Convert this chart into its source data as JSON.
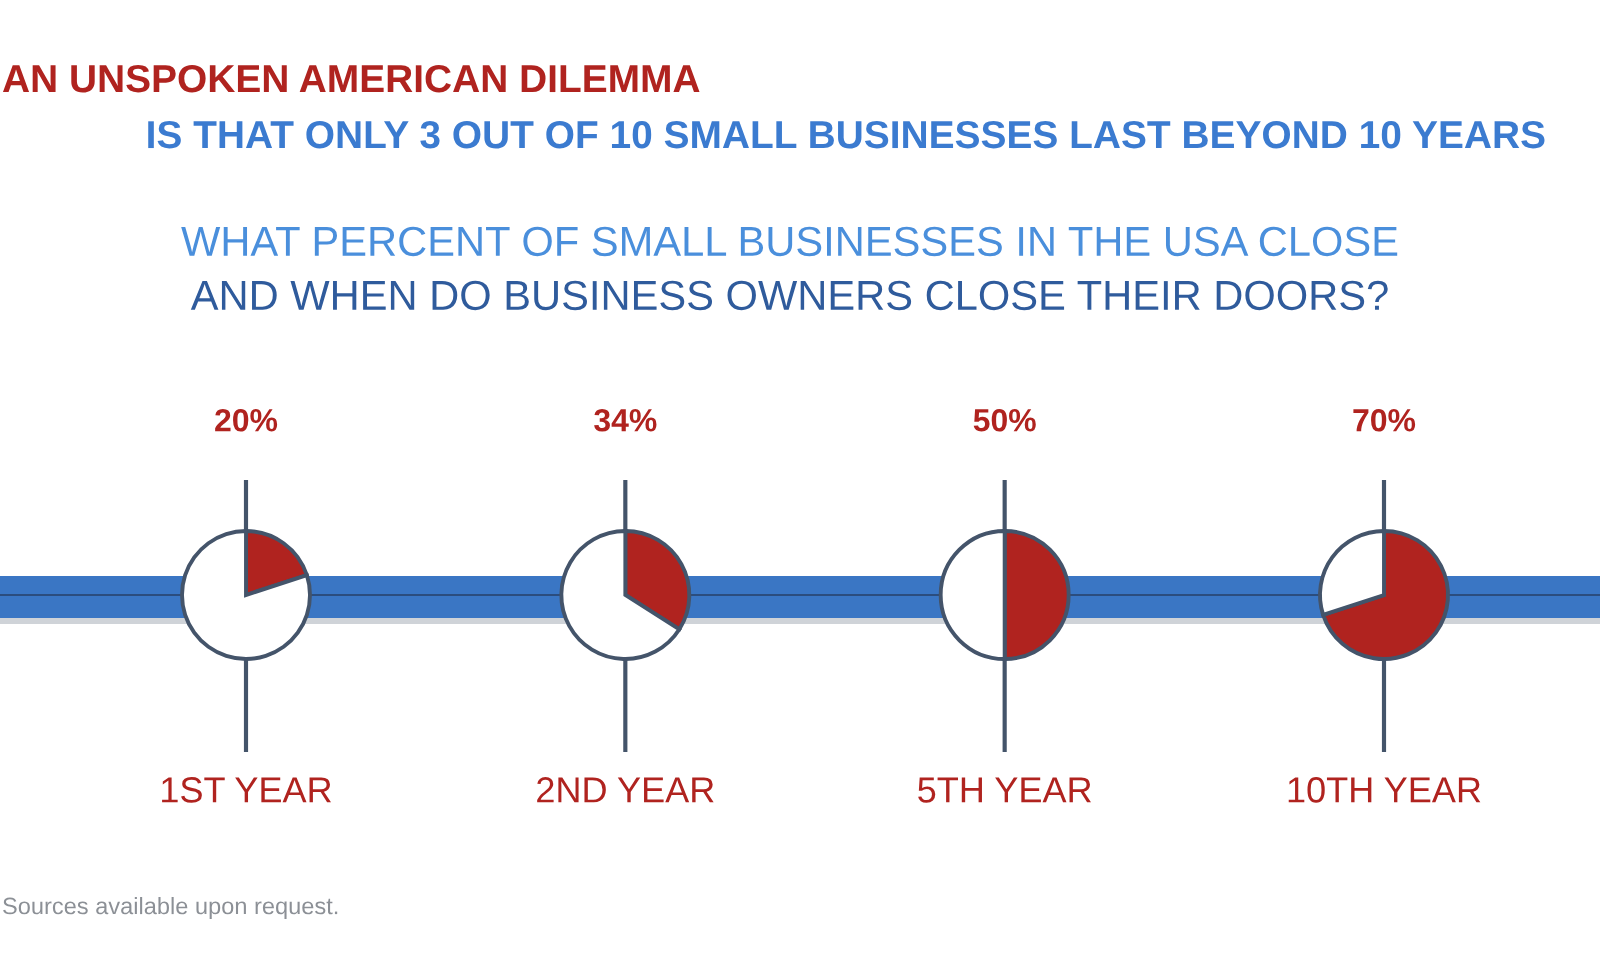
{
  "chart_data": [
    {
      "type": "other",
      "title": "AN UNSPOKEN AMERICAN DILEMMA\nIS THAT ONLY 3 OUT OF 10 SMALL BUSINESSES LAST BEYOND 10 YEARS",
      "subtitle": "WHAT PERCENT OF SMALL BUSINESSES IN THE USA CLOSE\nAND WHEN DO BUSINESS OWNERS CLOSE THEIR DOORS?",
      "annotations": [
        "Sources available upon request."
      ]
    },
    {
      "type": "pie",
      "title": "1ST YEAR",
      "categories": [
        null,
        null
      ],
      "values": [
        20,
        80
      ],
      "colors": [
        "#b0231f",
        "#ffffff"
      ],
      "value_labels": [
        "20%",
        null
      ]
    },
    {
      "type": "pie",
      "title": "2ND YEAR",
      "categories": [
        null,
        null
      ],
      "values": [
        34,
        66
      ],
      "colors": [
        "#b0231f",
        "#ffffff"
      ],
      "value_labels": [
        "34%",
        null
      ]
    },
    {
      "type": "pie",
      "title": "5TH YEAR",
      "categories": [
        null,
        null
      ],
      "values": [
        50,
        50
      ],
      "colors": [
        "#b0231f",
        "#ffffff"
      ],
      "value_labels": [
        "50%",
        null
      ]
    },
    {
      "type": "pie",
      "title": "10TH YEAR",
      "categories": [
        null,
        null
      ],
      "values": [
        70,
        30
      ],
      "colors": [
        "#b0231f",
        "#ffffff"
      ],
      "value_labels": [
        "70%",
        null
      ]
    }
  ]
}
